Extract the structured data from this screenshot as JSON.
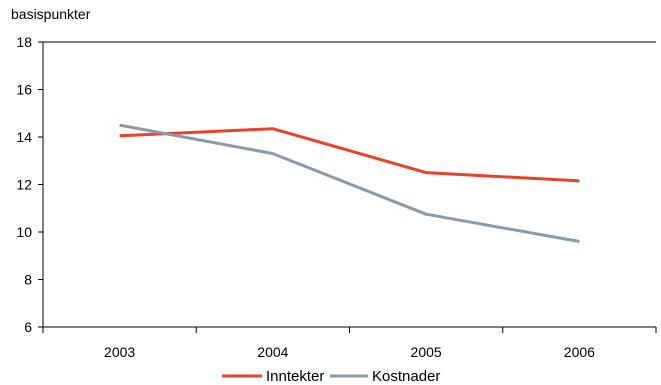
{
  "chart_data": {
    "type": "line",
    "ylabel": "basispunkter",
    "xlabel": "",
    "categories": [
      "2003",
      "2004",
      "2005",
      "2006"
    ],
    "ylim": [
      6,
      18
    ],
    "yticks": [
      6,
      8,
      10,
      12,
      14,
      16,
      18
    ],
    "grid": false,
    "legend_position": "bottom",
    "series": [
      {
        "name": "Inntekter",
        "color": "#e8412c",
        "values": [
          14.05,
          14.35,
          12.5,
          12.15
        ]
      },
      {
        "name": "Kostnader",
        "color": "#8c9aa5",
        "values": [
          14.5,
          13.3,
          10.75,
          9.6
        ]
      }
    ]
  }
}
